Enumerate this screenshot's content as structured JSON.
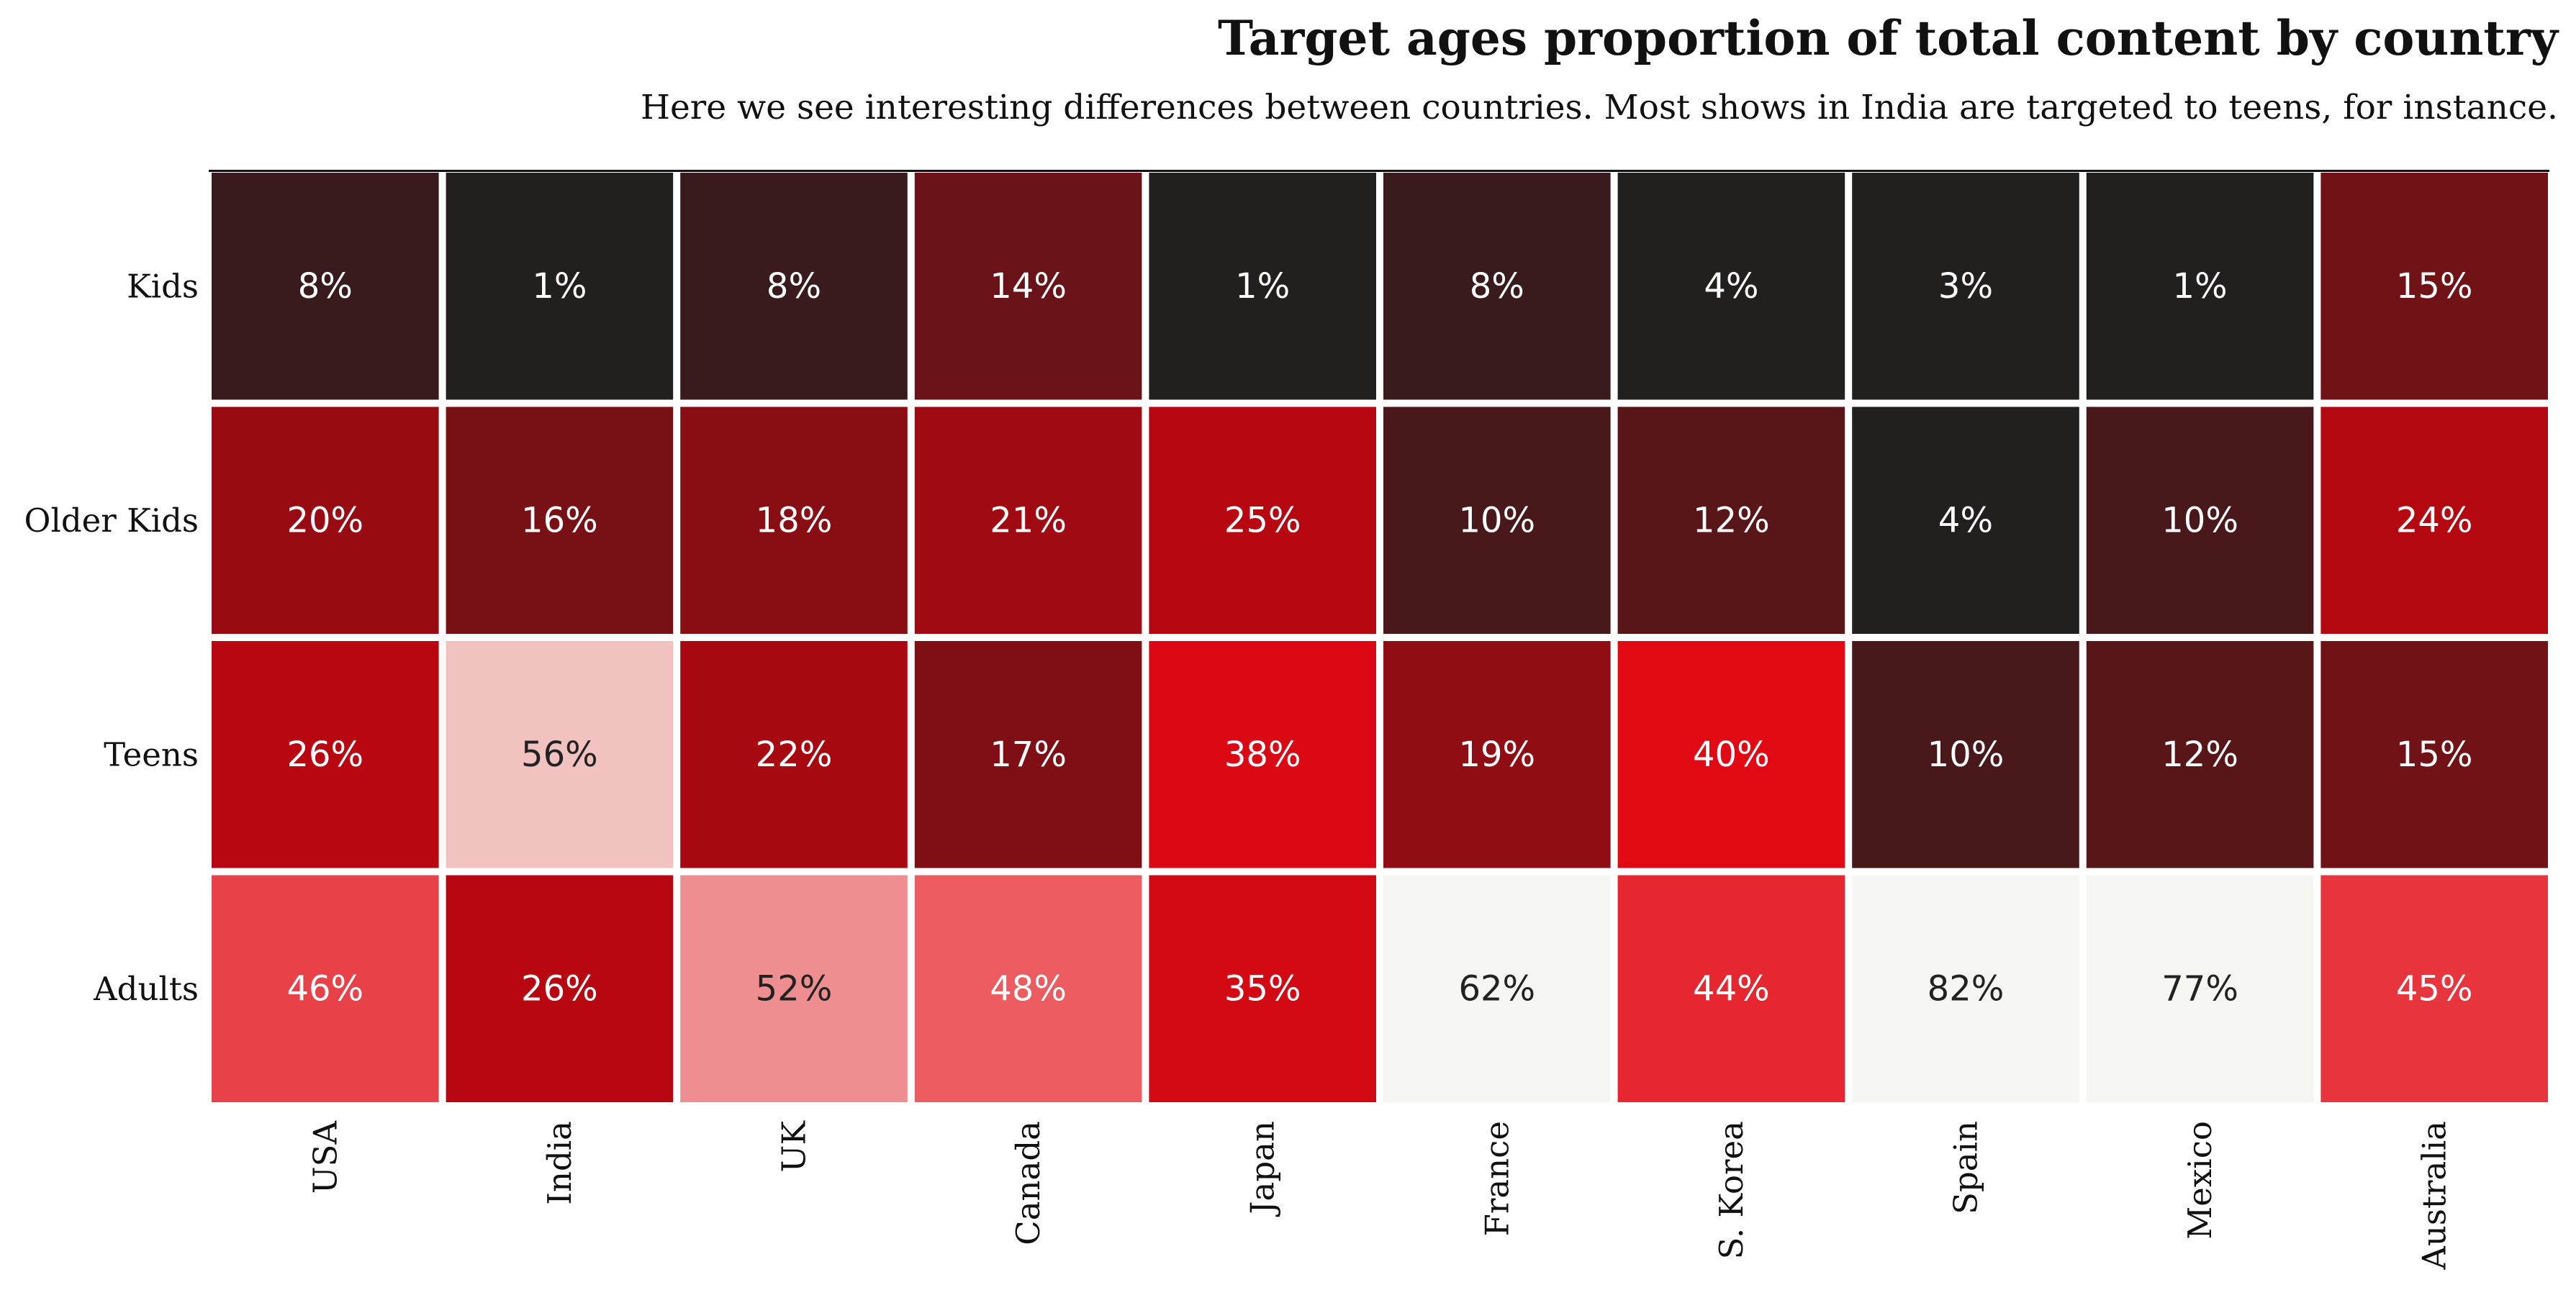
{
  "chart_data": {
    "type": "heatmap",
    "title": "Target ages proportion of total content by country",
    "subtitle": "Here we see interesting differences between countries. Most shows in India are targeted to teens, for instance.",
    "x_categories": [
      "USA",
      "India",
      "UK",
      "Canada",
      "Japan",
      "France",
      "S. Korea",
      "Spain",
      "Mexico",
      "Australia"
    ],
    "y_categories": [
      "Kids",
      "Older Kids",
      "Teens",
      "Adults"
    ],
    "values": [
      [
        8,
        1,
        8,
        14,
        1,
        8,
        4,
        3,
        1,
        15
      ],
      [
        20,
        16,
        18,
        21,
        25,
        10,
        12,
        4,
        10,
        24
      ],
      [
        26,
        56,
        22,
        17,
        38,
        19,
        40,
        10,
        12,
        15
      ],
      [
        46,
        26,
        52,
        48,
        35,
        62,
        44,
        82,
        77,
        45
      ]
    ],
    "labels": [
      [
        "8%",
        "1%",
        "8%",
        "14%",
        "1%",
        "8%",
        "4%",
        "3%",
        "1%",
        "15%"
      ],
      [
        "20%",
        "16%",
        "18%",
        "21%",
        "25%",
        "10%",
        "12%",
        "4%",
        "10%",
        "24%"
      ],
      [
        "26%",
        "56%",
        "22%",
        "17%",
        "38%",
        "19%",
        "40%",
        "10%",
        "12%",
        "15%"
      ],
      [
        "46%",
        "26%",
        "52%",
        "48%",
        "35%",
        "62%",
        "44%",
        "82%",
        "77%",
        "45%"
      ]
    ],
    "colormap": [
      "#221f1f",
      "#b20710",
      "#e50914",
      "#f5f5f1"
    ],
    "value_range": [
      5,
      60
    ],
    "legend": "none",
    "grid": false
  }
}
